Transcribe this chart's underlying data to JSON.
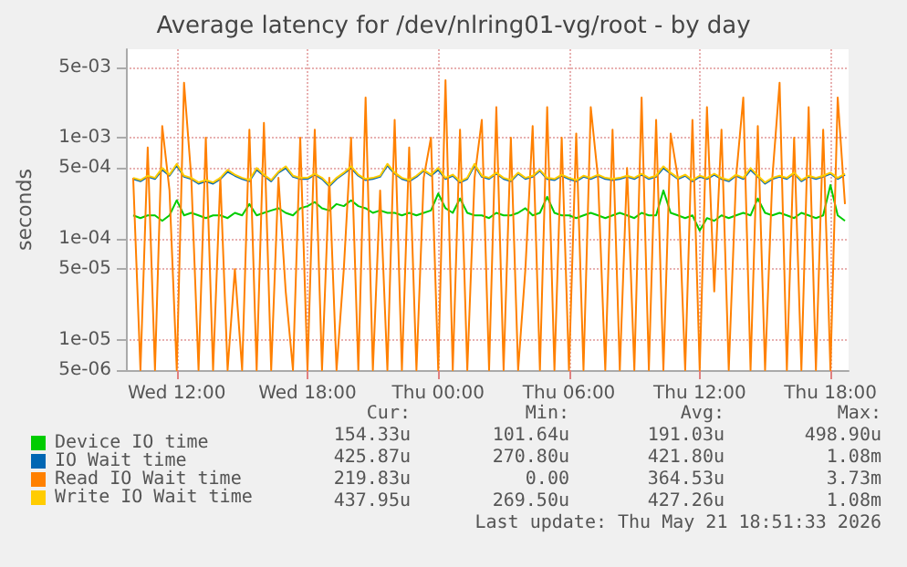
{
  "chart_data": {
    "type": "line",
    "title": "Average latency for /dev/nlring01-vg/root - by day",
    "ylabel": "seconds",
    "log": "y",
    "grid": true,
    "legend": "bottom",
    "marker": "none",
    "xlim": [
      "2026-05-20T09:40",
      "2026-05-21T18:50"
    ],
    "xticks": [
      {
        "value": "2026-05-20T12:00",
        "label": "Wed 12:00"
      },
      {
        "value": "2026-05-20T18:00",
        "label": "Wed 18:00"
      },
      {
        "value": "2026-05-21T00:00",
        "label": "Thu 00:00"
      },
      {
        "value": "2026-05-21T06:00",
        "label": "Thu 06:00"
      },
      {
        "value": "2026-05-21T12:00",
        "label": "Thu 12:00"
      },
      {
        "value": "2026-05-21T18:00",
        "label": "Thu 18:00"
      }
    ],
    "ylim": [
      5e-06,
      0.0075
    ],
    "yticks": [
      {
        "value": 5e-06,
        "label": "5e-06"
      },
      {
        "value": 1e-05,
        "label": "1e-05"
      },
      {
        "value": 5e-05,
        "label": "5e-05"
      },
      {
        "value": 0.0001,
        "label": "1e-04"
      },
      {
        "value": 0.0005,
        "label": "5e-04"
      },
      {
        "value": 0.001,
        "label": "1e-03"
      },
      {
        "value": 0.005,
        "label": "5e-03"
      }
    ],
    "x": [
      "2026-05-20T10:00",
      "2026-05-20T10:20",
      "2026-05-20T10:40",
      "2026-05-20T11:00",
      "2026-05-20T11:20",
      "2026-05-20T11:40",
      "2026-05-20T12:00",
      "2026-05-20T12:20",
      "2026-05-20T12:40",
      "2026-05-20T13:00",
      "2026-05-20T13:20",
      "2026-05-20T13:40",
      "2026-05-20T14:00",
      "2026-05-20T14:20",
      "2026-05-20T14:40",
      "2026-05-20T15:00",
      "2026-05-20T15:20",
      "2026-05-20T15:40",
      "2026-05-20T16:00",
      "2026-05-20T16:20",
      "2026-05-20T16:40",
      "2026-05-20T17:00",
      "2026-05-20T17:20",
      "2026-05-20T17:40",
      "2026-05-20T18:00",
      "2026-05-20T18:20",
      "2026-05-20T18:40",
      "2026-05-20T19:00",
      "2026-05-20T19:20",
      "2026-05-20T19:40",
      "2026-05-20T20:00",
      "2026-05-20T20:20",
      "2026-05-20T20:40",
      "2026-05-20T21:00",
      "2026-05-20T21:20",
      "2026-05-20T21:40",
      "2026-05-20T22:00",
      "2026-05-20T22:20",
      "2026-05-20T22:40",
      "2026-05-20T23:00",
      "2026-05-20T23:20",
      "2026-05-20T23:40",
      "2026-05-21T00:00",
      "2026-05-21T00:20",
      "2026-05-21T00:40",
      "2026-05-21T01:00",
      "2026-05-21T01:20",
      "2026-05-21T01:40",
      "2026-05-21T02:00",
      "2026-05-21T02:20",
      "2026-05-21T02:40",
      "2026-05-21T03:00",
      "2026-05-21T03:20",
      "2026-05-21T03:40",
      "2026-05-21T04:00",
      "2026-05-21T04:20",
      "2026-05-21T04:40",
      "2026-05-21T05:00",
      "2026-05-21T05:20",
      "2026-05-21T05:40",
      "2026-05-21T06:00",
      "2026-05-21T06:20",
      "2026-05-21T06:40",
      "2026-05-21T07:00",
      "2026-05-21T07:20",
      "2026-05-21T07:40",
      "2026-05-21T08:00",
      "2026-05-21T08:20",
      "2026-05-21T08:40",
      "2026-05-21T09:00",
      "2026-05-21T09:20",
      "2026-05-21T09:40",
      "2026-05-21T10:00",
      "2026-05-21T10:20",
      "2026-05-21T10:40",
      "2026-05-21T11:00",
      "2026-05-21T11:20",
      "2026-05-21T11:40",
      "2026-05-21T12:00",
      "2026-05-21T12:20",
      "2026-05-21T12:40",
      "2026-05-21T13:00",
      "2026-05-21T13:20",
      "2026-05-21T13:40",
      "2026-05-21T14:00",
      "2026-05-21T14:20",
      "2026-05-21T14:40",
      "2026-05-21T15:00",
      "2026-05-21T15:20",
      "2026-05-21T15:40",
      "2026-05-21T16:00",
      "2026-05-21T16:20",
      "2026-05-21T16:40",
      "2026-05-21T17:00",
      "2026-05-21T17:20",
      "2026-05-21T17:40",
      "2026-05-21T18:00",
      "2026-05-21T18:20",
      "2026-05-21T18:40"
    ],
    "series": [
      {
        "name": "Device IO time",
        "color": "#00cc00",
        "values": [
          0.00017,
          0.00016,
          0.00017,
          0.00017,
          0.00015,
          0.00017,
          0.00024,
          0.00017,
          0.00018,
          0.00017,
          0.00016,
          0.00017,
          0.00017,
          0.00016,
          0.00018,
          0.00017,
          0.00022,
          0.00017,
          0.00018,
          0.00019,
          0.0002,
          0.00018,
          0.00017,
          0.0002,
          0.00021,
          0.00023,
          0.0002,
          0.00019,
          0.00022,
          0.00021,
          0.00024,
          0.00021,
          0.0002,
          0.00018,
          0.00019,
          0.00018,
          0.00018,
          0.00017,
          0.00018,
          0.00017,
          0.00018,
          0.00019,
          0.00028,
          0.0002,
          0.00018,
          0.00025,
          0.00018,
          0.00017,
          0.00017,
          0.00016,
          0.00018,
          0.00017,
          0.00017,
          0.00018,
          0.0002,
          0.00017,
          0.00018,
          0.00026,
          0.00018,
          0.00017,
          0.00017,
          0.00016,
          0.00017,
          0.00018,
          0.00017,
          0.00016,
          0.00017,
          0.00018,
          0.00017,
          0.00016,
          0.00018,
          0.00017,
          0.00017,
          0.0003,
          0.00018,
          0.00017,
          0.00016,
          0.00017,
          0.00012,
          0.00016,
          0.00015,
          0.00017,
          0.00016,
          0.00017,
          0.00018,
          0.00017,
          0.00025,
          0.00018,
          0.00017,
          0.00018,
          0.00017,
          0.00016,
          0.00018,
          0.00017,
          0.00016,
          0.00017,
          0.00034,
          0.00017,
          0.00015
        ]
      },
      {
        "name": "IO Wait time",
        "color": "#0066b3",
        "values": [
          0.00039,
          0.00037,
          0.00041,
          0.00039,
          0.00048,
          0.00042,
          0.00053,
          0.00041,
          0.00039,
          0.00035,
          0.00037,
          0.00035,
          0.00039,
          0.00046,
          0.00042,
          0.00039,
          0.00037,
          0.00048,
          0.00042,
          0.00037,
          0.00045,
          0.0005,
          0.00041,
          0.00039,
          0.00039,
          0.00043,
          0.00039,
          0.00033,
          0.00039,
          0.00044,
          0.0005,
          0.00042,
          0.00038,
          0.00039,
          0.00041,
          0.00053,
          0.00044,
          0.00039,
          0.00037,
          0.00041,
          0.00047,
          0.00042,
          0.00048,
          0.00039,
          0.00042,
          0.00036,
          0.00039,
          0.00053,
          0.00041,
          0.00039,
          0.00044,
          0.00039,
          0.00037,
          0.00044,
          0.00039,
          0.00041,
          0.00047,
          0.00039,
          0.00038,
          0.00042,
          0.00039,
          0.00037,
          0.00041,
          0.00039,
          0.00042,
          0.00039,
          0.00038,
          0.00039,
          0.00041,
          0.00039,
          0.00043,
          0.00039,
          0.00041,
          0.0005,
          0.00044,
          0.00039,
          0.00042,
          0.00037,
          0.00041,
          0.00039,
          0.00043,
          0.00039,
          0.00037,
          0.00042,
          0.00039,
          0.00048,
          0.00041,
          0.00035,
          0.00039,
          0.00041,
          0.00039,
          0.00044,
          0.00037,
          0.00041,
          0.00039,
          0.00041,
          0.00044,
          0.00039,
          0.00043
        ]
      },
      {
        "name": "Read IO Wait time",
        "color": "#ff8000",
        "values": [
          0.0004,
          5e-06,
          0.0008,
          5e-06,
          0.0013,
          0.0003,
          5e-06,
          0.0035,
          0.0004,
          5e-06,
          0.001,
          5e-06,
          0.0004,
          5e-06,
          5e-05,
          5e-06,
          0.0012,
          5e-06,
          0.0014,
          5e-06,
          0.0004,
          3e-05,
          5e-06,
          0.001,
          5e-06,
          0.0012,
          5e-06,
          0.0004,
          5e-06,
          5e-05,
          0.001,
          5e-06,
          0.0025,
          5e-06,
          0.0003,
          5e-06,
          0.0015,
          5e-06,
          0.0008,
          5e-06,
          0.0004,
          0.001,
          5e-06,
          0.0037,
          5e-06,
          0.0012,
          5e-06,
          0.0004,
          0.0015,
          5e-06,
          0.002,
          5e-06,
          0.001,
          5e-06,
          5e-05,
          0.0013,
          5e-06,
          0.002,
          5e-06,
          0.001,
          5e-06,
          0.0011,
          5e-06,
          0.002,
          0.0004,
          5e-06,
          0.0012,
          5e-06,
          0.0005,
          5e-06,
          0.0025,
          5e-06,
          0.0015,
          5e-06,
          0.0011,
          0.0004,
          5e-06,
          0.0015,
          5e-06,
          0.002,
          3e-05,
          0.0012,
          5e-06,
          0.0004,
          0.0025,
          5e-06,
          0.0013,
          5e-06,
          0.0004,
          0.0035,
          5e-06,
          0.001,
          5e-06,
          0.002,
          5e-06,
          0.0012,
          5e-06,
          0.0025,
          0.00022
        ]
      },
      {
        "name": "Write IO Wait time",
        "color": "#ffcc00",
        "values": [
          0.0004,
          0.00038,
          0.00042,
          0.0004,
          0.0005,
          0.00043,
          0.00055,
          0.00042,
          0.0004,
          0.00036,
          0.00038,
          0.00036,
          0.0004,
          0.00048,
          0.00043,
          0.0004,
          0.00038,
          0.0005,
          0.00043,
          0.00038,
          0.00046,
          0.00052,
          0.00042,
          0.0004,
          0.0004,
          0.00044,
          0.0004,
          0.00034,
          0.0004,
          0.00045,
          0.00052,
          0.00043,
          0.00039,
          0.0004,
          0.00042,
          0.00055,
          0.00045,
          0.0004,
          0.00038,
          0.00042,
          0.00048,
          0.00043,
          0.0005,
          0.0004,
          0.00043,
          0.00037,
          0.0004,
          0.00055,
          0.00042,
          0.0004,
          0.00045,
          0.0004,
          0.00038,
          0.00045,
          0.0004,
          0.00042,
          0.00048,
          0.0004,
          0.00039,
          0.00043,
          0.0004,
          0.00038,
          0.00042,
          0.0004,
          0.00043,
          0.0004,
          0.00039,
          0.0004,
          0.00042,
          0.0004,
          0.00044,
          0.0004,
          0.00042,
          0.00052,
          0.00045,
          0.0004,
          0.00043,
          0.00038,
          0.00042,
          0.0004,
          0.00044,
          0.0004,
          0.00038,
          0.00043,
          0.0004,
          0.0005,
          0.00042,
          0.00036,
          0.0004,
          0.00042,
          0.0004,
          0.00045,
          0.00038,
          0.00042,
          0.0004,
          0.00042,
          0.00045,
          0.0004,
          0.00044
        ]
      }
    ],
    "annotations": [
      "Cur:",
      "Min:",
      "Avg:",
      "Max:",
      "154.33u",
      "101.64u",
      "191.03u",
      "498.90u",
      "425.87u",
      "270.80u",
      "421.80u",
      "1.08m",
      "219.83u",
      "0.00",
      "364.53u",
      "3.73m",
      "437.95u",
      "269.50u",
      "427.26u",
      "1.08m",
      "Last update: Thu May 21 18:51:33 2026"
    ]
  }
}
